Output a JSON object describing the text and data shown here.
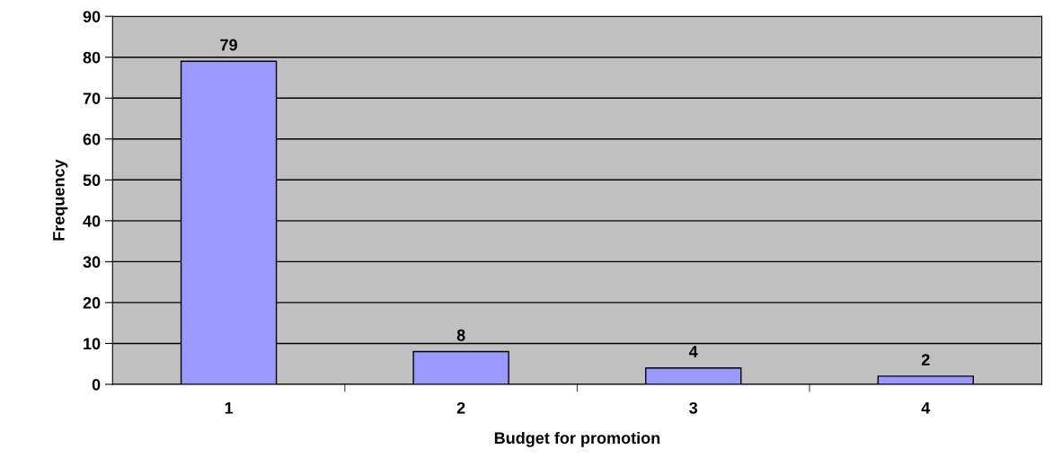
{
  "chart_data": {
    "type": "bar",
    "xlabel": "Budget for promotion",
    "ylabel": "Frequency",
    "categories": [
      "1",
      "2",
      "3",
      "4"
    ],
    "values": [
      79,
      8,
      4,
      2
    ],
    "color": "#9999ff",
    "ylim": [
      0,
      90
    ],
    "yticks": [
      0,
      10,
      20,
      30,
      40,
      50,
      60,
      70,
      80,
      90
    ],
    "grid": "y",
    "data_labels": true
  }
}
